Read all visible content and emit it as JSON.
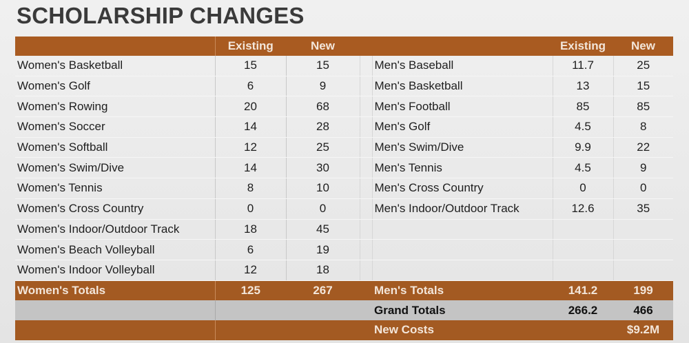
{
  "title": "SCHOLARSHIP CHANGES",
  "header": {
    "existing": "Existing",
    "new": "New"
  },
  "women": [
    {
      "sport": "Women's Basketball",
      "existing": "15",
      "new": "15"
    },
    {
      "sport": "Women's Golf",
      "existing": "6",
      "new": "9"
    },
    {
      "sport": "Women's Rowing",
      "existing": "20",
      "new": "68"
    },
    {
      "sport": "Women's Soccer",
      "existing": "14",
      "new": "28"
    },
    {
      "sport": "Women's Softball",
      "existing": "12",
      "new": "25"
    },
    {
      "sport": "Women's Swim/Dive",
      "existing": "14",
      "new": "30"
    },
    {
      "sport": "Women's Tennis",
      "existing": "8",
      "new": "10"
    },
    {
      "sport": "Women's Cross Country",
      "existing": "0",
      "new": "0"
    },
    {
      "sport": "Women's Indoor/Outdoor Track",
      "existing": "18",
      "new": "45"
    },
    {
      "sport": "Women's Beach Volleyball",
      "existing": "6",
      "new": "19"
    },
    {
      "sport": "Women's Indoor Volleyball",
      "existing": "12",
      "new": "18"
    }
  ],
  "men": [
    {
      "sport": "Men's Baseball",
      "existing": "11.7",
      "new": "25"
    },
    {
      "sport": "Men's Basketball",
      "existing": "13",
      "new": "15"
    },
    {
      "sport": "Men's Football",
      "existing": "85",
      "new": "85"
    },
    {
      "sport": "Men's Golf",
      "existing": "4.5",
      "new": "8"
    },
    {
      "sport": "Men's Swim/Dive",
      "existing": "9.9",
      "new": "22"
    },
    {
      "sport": "Men's Tennis",
      "existing": "4.5",
      "new": "9"
    },
    {
      "sport": "Men's Cross Country",
      "existing": "0",
      "new": "0"
    },
    {
      "sport": "Men's Indoor/Outdoor Track",
      "existing": "12.6",
      "new": "35"
    }
  ],
  "totals": {
    "women": {
      "label": "Women's Totals",
      "existing": "125",
      "new": "267"
    },
    "men": {
      "label": "Men's Totals",
      "existing": "141.2",
      "new": "199"
    },
    "grand": {
      "label": "Grand Totals",
      "existing": "266.2",
      "new": "466"
    },
    "costs": {
      "label": "New Costs",
      "value": "$9.2M"
    }
  },
  "colors": {
    "accent": "#a95b21",
    "grand_row": "#c4c4c4"
  }
}
